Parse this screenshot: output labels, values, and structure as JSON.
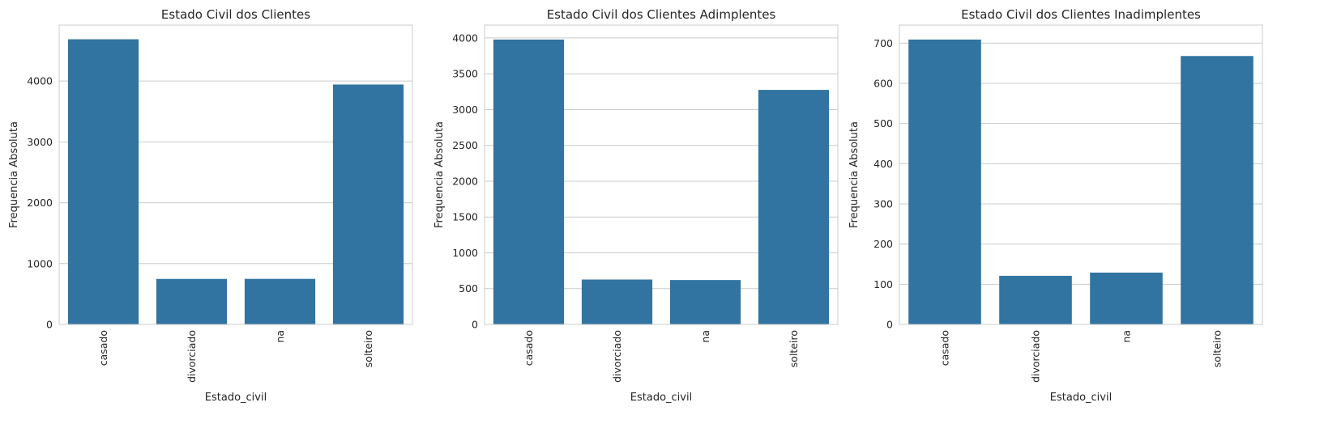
{
  "chart_data": [
    {
      "type": "bar",
      "title": "Estado Civil dos Clientes",
      "xlabel": "Estado_civil",
      "ylabel": "Frequencia Absoluta",
      "categories": [
        "casado",
        "divorciado",
        "na",
        "solteiro"
      ],
      "values": [
        4687,
        748,
        749,
        3943
      ],
      "ylim": [
        0,
        4920
      ],
      "yticks": [
        0,
        1000,
        2000,
        3000,
        4000
      ],
      "grid": true,
      "bar_color": "#3274a1"
    },
    {
      "type": "bar",
      "title": "Estado Civil dos Clientes Adimplentes",
      "xlabel": "Estado_civil",
      "ylabel": "Frequencia Absoluta",
      "categories": [
        "casado",
        "divorciado",
        "na",
        "solteiro"
      ],
      "values": [
        3978,
        627,
        620,
        3275
      ],
      "ylim": [
        0,
        4180
      ],
      "yticks": [
        0,
        500,
        1000,
        1500,
        2000,
        2500,
        3000,
        3500,
        4000
      ],
      "grid": true,
      "bar_color": "#3274a1"
    },
    {
      "type": "bar",
      "title": "Estado Civil dos Clientes Inadimplentes",
      "xlabel": "Estado_civil",
      "ylabel": "Frequencia Absoluta",
      "categories": [
        "casado",
        "divorciado",
        "na",
        "solteiro"
      ],
      "values": [
        709,
        121,
        129,
        668
      ],
      "ylim": [
        0,
        745
      ],
      "yticks": [
        0,
        100,
        200,
        300,
        400,
        500,
        600,
        700
      ],
      "grid": true,
      "bar_color": "#3274a1"
    }
  ]
}
